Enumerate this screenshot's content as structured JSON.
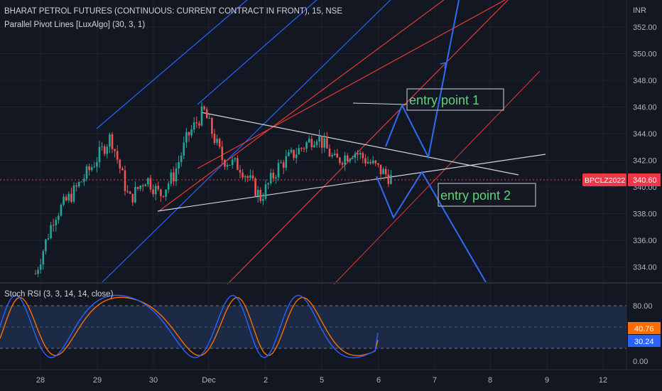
{
  "header": {
    "symbol_title": "BHARAT PETROL FUTURES (CONTINUOUS: CURRENT CONTRACT IN FRONT), 15, NSE",
    "indicator": "Parallel Pivot Lines [LuxAlgo] (30, 3, 1)",
    "stoch_label": "Stoch RSI (3, 3, 14, 14, close)"
  },
  "price_axis": {
    "currency": "INR",
    "ticks": [
      "352.00",
      "350.00",
      "348.00",
      "346.00",
      "344.00",
      "342.00",
      "340.00",
      "338.00",
      "336.00",
      "334.00"
    ]
  },
  "stoch_axis": {
    "ticks": [
      "80.00",
      "0.00"
    ]
  },
  "time_axis": {
    "labels": [
      "28",
      "29",
      "30",
      "Dec",
      "2",
      "5",
      "6",
      "7",
      "8",
      "9",
      "12"
    ]
  },
  "badges": {
    "symbol": "BPCLZ2022",
    "price": "340.60",
    "stoch_k": "40.76",
    "stoch_d": "30.24"
  },
  "annotations": {
    "entry1": "entry point 1",
    "entry2": "entry point 2"
  },
  "colors": {
    "background": "#131722",
    "up": "#26a69a",
    "down": "#ef5350",
    "channel_blue": "#2962ff",
    "channel_red": "#e53935",
    "trend_white": "#d1d4dc",
    "projection_blue": "#2e6cf6",
    "stoch_k": "#2962ff",
    "stoch_d": "#ff6d00",
    "stoch_band": "#1c2a45",
    "price_badge": "#f23645",
    "k_badge": "#ff6d00",
    "d_badge": "#2962ff"
  },
  "chart_data": {
    "type": "candlestick",
    "title": "BHARAT PETROL FUTURES (CONTINUOUS: CURRENT CONTRACT IN FRONT), 15, NSE",
    "y_unit": "INR",
    "ylim": [
      332.8,
      353.5
    ],
    "x_categories": [
      "28",
      "29",
      "30",
      "Dec",
      "2",
      "5",
      "6",
      "7",
      "8",
      "9",
      "12"
    ],
    "last_price": 340.6,
    "price_close_trace": [
      [
        "28",
        333.5
      ],
      [
        "28",
        337.8
      ],
      [
        "28",
        339.5
      ],
      [
        "29",
        341.6
      ],
      [
        "29",
        343.8
      ],
      [
        "29",
        339.0
      ],
      [
        "30",
        340.7
      ],
      [
        "30",
        339.4
      ],
      [
        "30",
        340.9
      ],
      [
        "30",
        343.8
      ],
      [
        "Dec",
        345.7
      ],
      [
        "Dec",
        342.1
      ],
      [
        "Dec",
        341.5
      ],
      [
        "2",
        339.2
      ],
      [
        "2",
        341.6
      ],
      [
        "2",
        342.7
      ],
      [
        "5",
        343.9
      ],
      [
        "5",
        341.9
      ],
      [
        "5",
        342.7
      ],
      [
        "6",
        340.6
      ]
    ],
    "stoch_rsi": {
      "k_last": 40.76,
      "d_last": 30.24,
      "levels": [
        80,
        20
      ],
      "ylim": [
        0,
        100
      ]
    }
  }
}
